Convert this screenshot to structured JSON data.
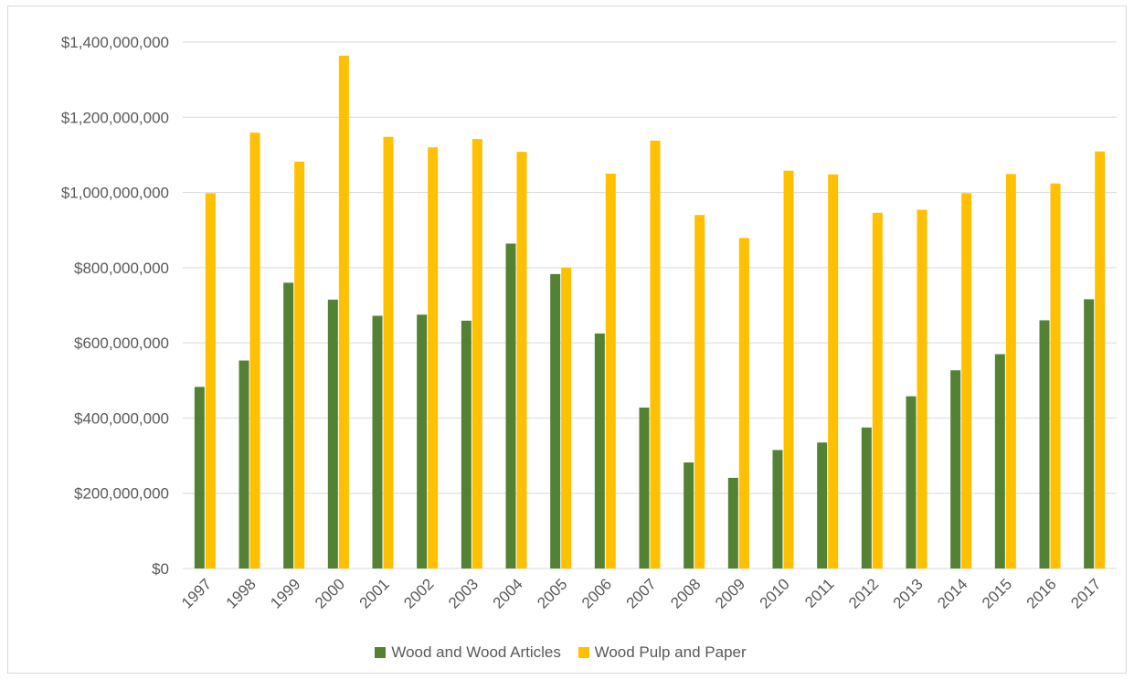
{
  "chart_data": {
    "type": "bar",
    "categories": [
      "1997",
      "1998",
      "1999",
      "2000",
      "2001",
      "2002",
      "2003",
      "2004",
      "2005",
      "2006",
      "2007",
      "2008",
      "2009",
      "2010",
      "2011",
      "2012",
      "2013",
      "2014",
      "2015",
      "2016",
      "2017"
    ],
    "series": [
      {
        "name": "Wood and Wood Articles",
        "color": "#548235",
        "values": [
          483000000,
          553000000,
          760000000,
          715000000,
          672000000,
          675000000,
          659000000,
          864000000,
          783000000,
          625000000,
          428000000,
          282000000,
          241000000,
          315000000,
          335000000,
          375000000,
          458000000,
          527000000,
          570000000,
          660000000,
          716000000
        ]
      },
      {
        "name": "Wood Pulp and Paper",
        "color": "#FFC000",
        "values": [
          998000000,
          1159000000,
          1082000000,
          1364000000,
          1148000000,
          1120000000,
          1142000000,
          1108000000,
          800000000,
          1050000000,
          1138000000,
          940000000,
          879000000,
          1058000000,
          1048000000,
          946000000,
          954000000,
          998000000,
          1049000000,
          1024000000,
          1109000000
        ]
      }
    ],
    "ylim": [
      0,
      1400000000
    ],
    "yticks": [
      0,
      200000000,
      400000000,
      600000000,
      800000000,
      1000000000,
      1200000000,
      1400000000
    ],
    "ytick_labels": [
      "$0",
      "$200,000,000",
      "$400,000,000",
      "$600,000,000",
      "$800,000,000",
      "$1,000,000,000",
      "$1,200,000,000",
      "$1,400,000,000"
    ],
    "grid": true,
    "legend_position": "bottom"
  }
}
